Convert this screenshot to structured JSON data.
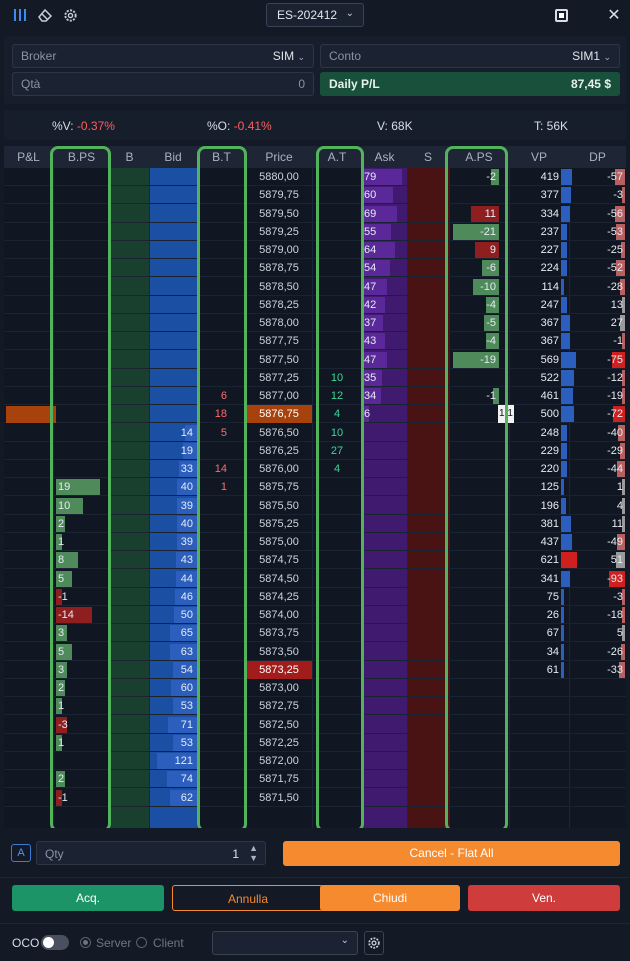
{
  "window": {
    "symbol": "ES-202412"
  },
  "account": {
    "broker_label": "Broker",
    "broker_value": "SIM",
    "conto_label": "Conto",
    "conto_value": "SIM1",
    "qta_label": "Qtà",
    "qta_value": "0",
    "daily_pl_label": "Daily P/L",
    "daily_pl_value": "87,45 $"
  },
  "stats": {
    "v_pct_label": "%V:",
    "v_pct_value": "-0.37%",
    "o_pct_label": "%O:",
    "o_pct_value": "-0.41%",
    "volume": "V: 68K",
    "trades": "T: 56K"
  },
  "columns": [
    "P&L",
    "B.PS",
    "B",
    "Bid",
    "B.T",
    "Price",
    "A.T",
    "Ask",
    "S",
    "A.PS",
    "VP",
    "DP"
  ],
  "colors": {
    "bid_blue": "#1b4fa3",
    "ask_purple": "#3f1a6e",
    "sell_red": "#4a1313",
    "buy_green": "#19402e",
    "highlight_green": "#52b35c",
    "orange": "#f58a2e",
    "red": "#cf3c3c"
  },
  "rows": [
    {
      "price": "5880,00",
      "ask": "79",
      "aps": "-2",
      "vp": "419",
      "dp": "-57"
    },
    {
      "price": "5879,75",
      "ask": "60",
      "vp": "377",
      "dp": "-3"
    },
    {
      "price": "5879,50",
      "ask": "69",
      "aps": "11",
      "vp": "334",
      "dp": "-56"
    },
    {
      "price": "5879,25",
      "ask": "55",
      "aps": "-21",
      "vp": "237",
      "dp": "-53"
    },
    {
      "price": "5879,00",
      "ask": "64",
      "aps": "9",
      "vp": "227",
      "dp": "-25"
    },
    {
      "price": "5878,75",
      "ask": "54",
      "aps": "-6",
      "vp": "224",
      "dp": "-52"
    },
    {
      "price": "5878,50",
      "ask": "47",
      "aps": "-10",
      "vp": "114",
      "dp": "-28"
    },
    {
      "price": "5878,25",
      "ask": "42",
      "aps": "-4",
      "vp": "247",
      "dp": "13"
    },
    {
      "price": "5878,00",
      "ask": "37",
      "aps": "-5",
      "vp": "367",
      "dp": "27"
    },
    {
      "price": "5877,75",
      "ask": "43",
      "aps": "-4",
      "vp": "367",
      "dp": "-1"
    },
    {
      "price": "5877,50",
      "ask": "47",
      "aps": "-19",
      "vp": "569",
      "dp": "-75"
    },
    {
      "price": "5877,25",
      "at": "10",
      "ask": "35",
      "vp": "522",
      "dp": "-12"
    },
    {
      "price": "5877,00",
      "bt": "6",
      "at": "12",
      "ask": "34",
      "aps": "-1",
      "vp": "461",
      "dp": "-19"
    },
    {
      "price": "5876,75",
      "bt": "18",
      "at": "4",
      "ask": "6",
      "vp": "500",
      "dp": "-72",
      "last": true,
      "marker": "1 1"
    },
    {
      "price": "5876,50",
      "bid": "14",
      "bt": "5",
      "at": "10",
      "vp": "248",
      "dp": "-40"
    },
    {
      "price": "5876,25",
      "bid": "19",
      "at": "27",
      "vp": "229",
      "dp": "-29"
    },
    {
      "price": "5876,00",
      "bid": "33",
      "bt": "14",
      "at": "4",
      "vp": "220",
      "dp": "-44"
    },
    {
      "price": "5875,75",
      "bps": "19",
      "bid": "40",
      "bt": "1",
      "vp": "125",
      "dp": "1"
    },
    {
      "price": "5875,50",
      "bps": "10",
      "bid": "39",
      "vp": "196",
      "dp": "4"
    },
    {
      "price": "5875,25",
      "bps": "2",
      "bid": "40",
      "vp": "381",
      "dp": "11"
    },
    {
      "price": "5875,00",
      "bps": "1",
      "bid": "39",
      "vp": "437",
      "dp": "-49"
    },
    {
      "price": "5874,75",
      "bps": "8",
      "bid": "43",
      "vp": "621",
      "dp": "51"
    },
    {
      "price": "5874,50",
      "bps": "5",
      "bid": "44",
      "vp": "341",
      "dp": "-93"
    },
    {
      "price": "5874,25",
      "bps": "-1",
      "bid": "46",
      "vp": "75",
      "dp": "-3"
    },
    {
      "price": "5874,00",
      "bps": "-14",
      "bid": "50",
      "vp": "26",
      "dp": "-18"
    },
    {
      "price": "5873,75",
      "bps": "3",
      "bid": "65",
      "vp": "67",
      "dp": "5"
    },
    {
      "price": "5873,50",
      "bps": "5",
      "bid": "63",
      "vp": "34",
      "dp": "-26"
    },
    {
      "price": "5873,25",
      "bps": "3",
      "bid": "54",
      "vp": "61",
      "dp": "-33",
      "lastbid": true
    },
    {
      "price": "5873,00",
      "bps": "2",
      "bid": "60"
    },
    {
      "price": "5872,75",
      "bps": "1",
      "bid": "53"
    },
    {
      "price": "5872,50",
      "bps": "-3",
      "bid": "71"
    },
    {
      "price": "5872,25",
      "bps": "1",
      "bid": "53"
    },
    {
      "price": "5872,00",
      "bid": "121"
    },
    {
      "price": "5871,75",
      "bps": "2",
      "bid": "74"
    },
    {
      "price": "5871,50",
      "bps": "-1",
      "bid": "62"
    }
  ],
  "order": {
    "a_label": "A",
    "qty_label": "Qty",
    "qty_value": "1",
    "cancel_flat_label": "Cancel - Flat All"
  },
  "actions": {
    "buy": "Acq.",
    "cancel": "Annulla",
    "close": "Chiudi",
    "sell": "Ven."
  },
  "footer": {
    "oco_label": "OCO",
    "server_label": "Server",
    "client_label": "Client"
  }
}
